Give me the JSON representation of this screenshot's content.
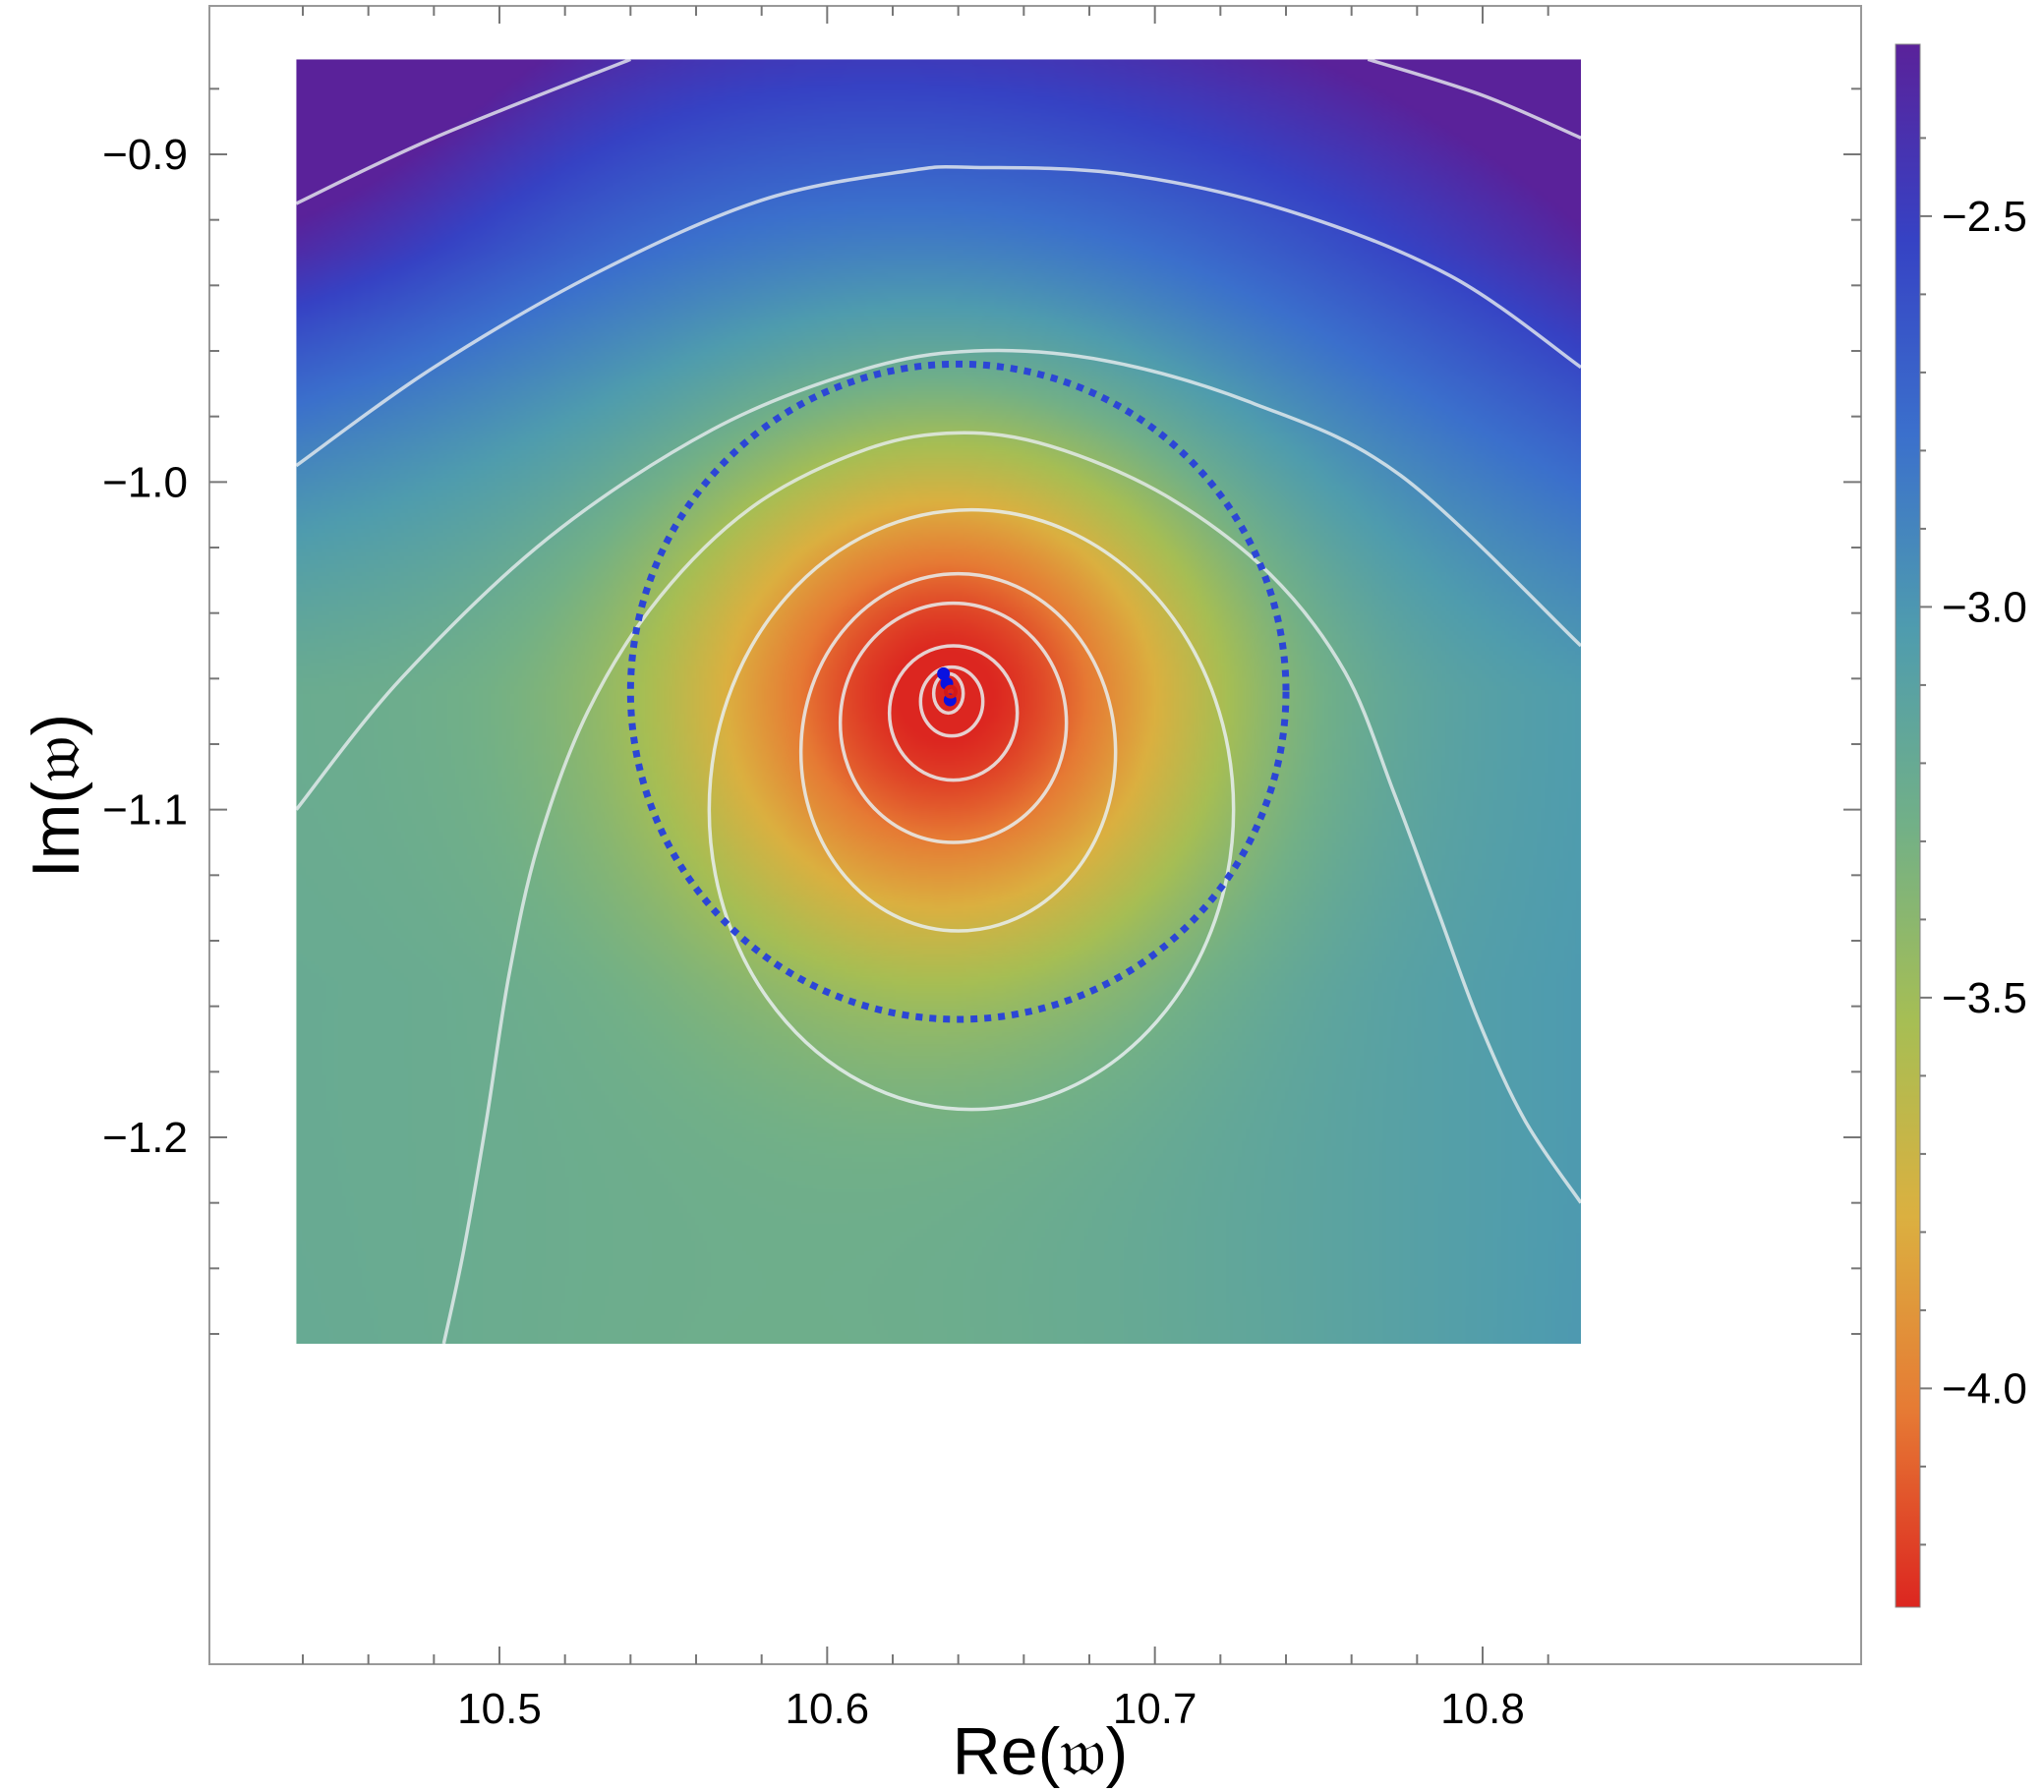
{
  "chart_data": {
    "type": "heatmap",
    "title": "",
    "xlabel": "Re(𝔴)",
    "ylabel": "Im(𝔴)",
    "xlim": [
      10.43,
      10.84
    ],
    "ylim": [
      -1.265,
      -0.87
    ],
    "plot_extent": {
      "x": [
        10.438,
        10.83
      ],
      "y": [
        -1.263,
        -0.871
      ]
    },
    "x_ticks": [
      10.5,
      10.6,
      10.7,
      10.8
    ],
    "x_tick_labels": [
      "10.5",
      "10.6",
      "10.7",
      "10.8"
    ],
    "y_ticks": [
      -0.9,
      -1.0,
      -1.1,
      -1.2
    ],
    "y_tick_labels": [
      "−0.9",
      "−1.0",
      "−1.1",
      "−1.2"
    ],
    "colorbar": {
      "range": [
        -4.28,
        -2.28
      ],
      "ticks": [
        -2.5,
        -3.0,
        -3.5,
        -4.0
      ],
      "tick_labels": [
        "−2.5",
        "−3.0",
        "−3.5",
        "−4.0"
      ],
      "colors": [
        "#dc2620",
        "#e67a34",
        "#dbb040",
        "#a6be54",
        "#72b087",
        "#4f9cae",
        "#3b70cc",
        "#3642c4",
        "#5a229a"
      ]
    },
    "minimum": {
      "x": 10.637,
      "y": -1.064
    },
    "contour_color": "#e8eef0",
    "contours": [
      {
        "type": "ellipse",
        "cx": 10.637,
        "cy": -1.0645,
        "rx": 0.0045,
        "ry": 0.006
      },
      {
        "type": "ellipse",
        "cx": 10.638,
        "cy": -1.067,
        "rx": 0.0095,
        "ry": 0.0105
      },
      {
        "type": "ellipse",
        "cx": 10.6385,
        "cy": -1.0705,
        "rx": 0.0195,
        "ry": 0.0205
      },
      {
        "type": "ellipse",
        "cx": 10.6385,
        "cy": -1.0735,
        "rx": 0.0345,
        "ry": 0.0365
      },
      {
        "type": "ellipse",
        "cx": 10.64,
        "cy": -1.0825,
        "rx": 0.048,
        "ry": 0.0545
      },
      {
        "type": "ellipse",
        "cx": 10.644,
        "cy": -1.1,
        "rx": 0.08,
        "ry": 0.0915
      },
      {
        "type": "curve",
        "points": [
          [
            10.483,
            -1.263
          ],
          [
            10.489,
            -1.235
          ],
          [
            10.496,
            -1.195
          ],
          [
            10.503,
            -1.15
          ],
          [
            10.512,
            -1.11
          ],
          [
            10.527,
            -1.07
          ],
          [
            10.549,
            -1.035
          ],
          [
            10.578,
            -1.007
          ],
          [
            10.612,
            -0.99
          ],
          [
            10.64,
            -0.985
          ],
          [
            10.668,
            -0.989
          ],
          [
            10.703,
            -1.004
          ],
          [
            10.735,
            -1.028
          ],
          [
            10.758,
            -1.058
          ],
          [
            10.773,
            -1.095
          ],
          [
            10.786,
            -1.13
          ],
          [
            10.799,
            -1.165
          ],
          [
            10.813,
            -1.195
          ],
          [
            10.83,
            -1.22
          ]
        ]
      },
      {
        "type": "curve",
        "points": [
          [
            10.438,
            -1.1
          ],
          [
            10.47,
            -1.06
          ],
          [
            10.515,
            -1.017
          ],
          [
            10.565,
            -0.984
          ],
          [
            10.61,
            -0.966
          ],
          [
            10.645,
            -0.96
          ],
          [
            10.685,
            -0.963
          ],
          [
            10.73,
            -0.976
          ],
          [
            10.775,
            -0.998
          ],
          [
            10.83,
            -1.05
          ]
        ]
      },
      {
        "type": "curve",
        "points": [
          [
            10.438,
            -0.995
          ],
          [
            10.48,
            -0.965
          ],
          [
            10.53,
            -0.936
          ],
          [
            10.58,
            -0.914
          ],
          [
            10.625,
            -0.905
          ],
          [
            10.645,
            -0.904
          ],
          [
            10.69,
            -0.906
          ],
          [
            10.74,
            -0.917
          ],
          [
            10.79,
            -0.937
          ],
          [
            10.83,
            -0.965
          ]
        ]
      },
      {
        "type": "curve",
        "points": [
          [
            10.438,
            -0.915
          ],
          [
            10.48,
            -0.895
          ],
          [
            10.54,
            -0.871
          ]
        ]
      },
      {
        "type": "curve",
        "points": [
          [
            10.765,
            -0.871
          ],
          [
            10.8,
            -0.882
          ],
          [
            10.83,
            -0.895
          ]
        ]
      }
    ],
    "dotted_circle": {
      "cx": 10.64,
      "cy": -1.064,
      "rx": 0.1,
      "ry": 0.1,
      "color": "#2c46d6"
    },
    "points": [
      {
        "x": 10.6355,
        "y": -1.0585,
        "color": "#0a12e0"
      },
      {
        "x": 10.6365,
        "y": -1.0615,
        "color": "#0a12e0"
      },
      {
        "x": 10.6375,
        "y": -1.0665,
        "color": "#0a12e0"
      },
      {
        "x": 10.6377,
        "y": -1.064,
        "color": "#d41818"
      }
    ]
  }
}
